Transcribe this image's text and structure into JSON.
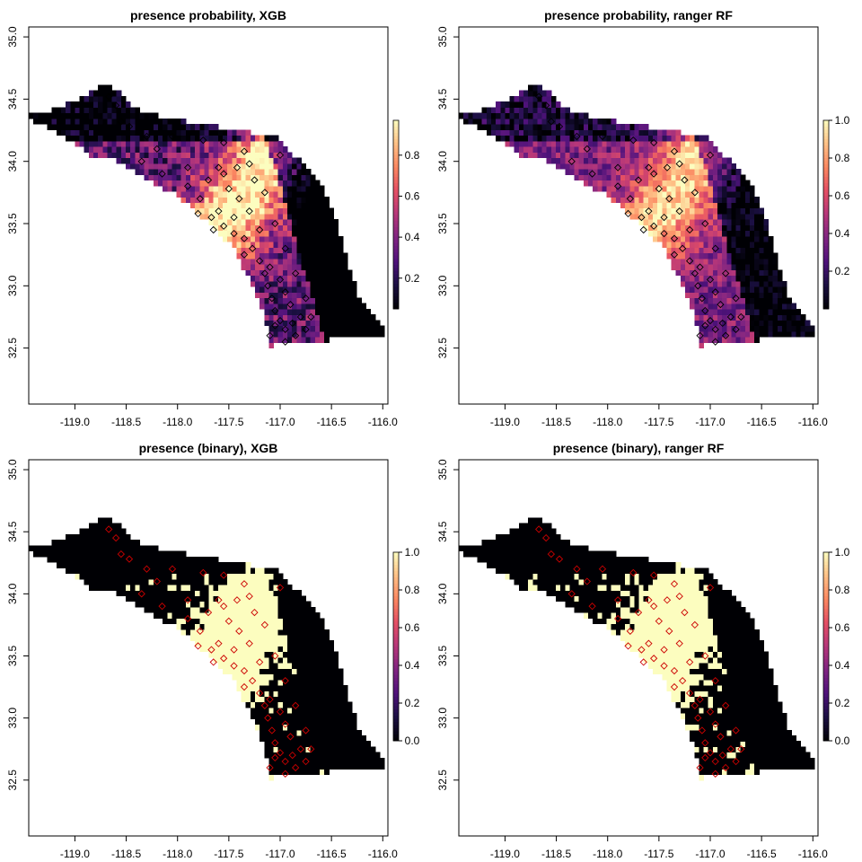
{
  "chart_data": [
    {
      "type": "heatmap",
      "title": "presence probability, XGB",
      "xlim": [
        -119.45,
        -115.95
      ],
      "ylim": [
        32.05,
        35.08
      ],
      "x_ticks": [
        -119.0,
        -118.5,
        -118.0,
        -117.5,
        -117.0,
        -116.5,
        -116.0
      ],
      "x_tick_labels": [
        "-119.0",
        "-118.5",
        "-118.0",
        "-117.5",
        "-117.0",
        "-116.5",
        "-116.0"
      ],
      "y_ticks": [
        32.5,
        33.0,
        33.5,
        34.0,
        34.5,
        35.0
      ],
      "y_tick_labels": [
        "32.5",
        "33.0",
        "33.5",
        "34.0",
        "34.5",
        "35.0"
      ],
      "legend": {
        "range": [
          0.05,
          0.97
        ],
        "ticks": [
          0.2,
          0.4,
          0.6,
          0.8
        ],
        "tick_labels": [
          "0.2",
          "0.4",
          "0.6",
          "0.8"
        ],
        "colormap": "magma"
      },
      "binary": false,
      "points": {
        "marker": "open-diamond",
        "color": "#000000"
      }
    },
    {
      "type": "heatmap",
      "title": "presence probability, ranger RF",
      "xlim": [
        -119.45,
        -115.95
      ],
      "ylim": [
        32.05,
        35.08
      ],
      "x_ticks": [
        -119.0,
        -118.5,
        -118.0,
        -117.5,
        -117.0,
        -116.5,
        -116.0
      ],
      "x_tick_labels": [
        "-119.0",
        "-118.5",
        "-118.0",
        "-117.5",
        "-117.0",
        "-116.5",
        "-116.0"
      ],
      "y_ticks": [
        32.5,
        33.0,
        33.5,
        34.0,
        34.5,
        35.0
      ],
      "y_tick_labels": [
        "32.5",
        "33.0",
        "33.5",
        "34.0",
        "34.5",
        "35.0"
      ],
      "legend": {
        "range": [
          0.0,
          1.0
        ],
        "ticks": [
          0.2,
          0.4,
          0.6,
          0.8,
          1.0
        ],
        "tick_labels": [
          "0.2",
          "0.4",
          "0.6",
          "0.8",
          "1.0"
        ],
        "colormap": "magma"
      },
      "binary": false,
      "points": {
        "marker": "open-diamond",
        "color": "#000000"
      }
    },
    {
      "type": "heatmap",
      "title": "presence (binary), XGB",
      "xlim": [
        -119.45,
        -115.95
      ],
      "ylim": [
        32.05,
        35.08
      ],
      "x_ticks": [
        -119.0,
        -118.5,
        -118.0,
        -117.5,
        -117.0,
        -116.5,
        -116.0
      ],
      "x_tick_labels": [
        "-119.0",
        "-118.5",
        "-118.0",
        "-117.5",
        "-117.0",
        "-116.5",
        "-116.0"
      ],
      "y_ticks": [
        32.5,
        33.0,
        33.5,
        34.0,
        34.5,
        35.0
      ],
      "y_tick_labels": [
        "32.5",
        "33.0",
        "33.5",
        "34.0",
        "34.5",
        "35.0"
      ],
      "legend": {
        "range": [
          0.0,
          1.0
        ],
        "ticks": [
          0.0,
          0.2,
          0.4,
          0.6,
          0.8,
          1.0
        ],
        "tick_labels": [
          "0.0",
          "0.2",
          "0.4",
          "0.6",
          "0.8",
          "1.0"
        ],
        "colormap": "magma"
      },
      "binary": true,
      "points": {
        "marker": "open-diamond",
        "color": "#cc0000"
      }
    },
    {
      "type": "heatmap",
      "title": "presence (binary), ranger RF",
      "xlim": [
        -119.45,
        -115.95
      ],
      "ylim": [
        32.05,
        35.08
      ],
      "x_ticks": [
        -119.0,
        -118.5,
        -118.0,
        -117.5,
        -117.0,
        -116.5,
        -116.0
      ],
      "x_tick_labels": [
        "-119.0",
        "-118.5",
        "-118.0",
        "-117.5",
        "-117.0",
        "-116.5",
        "-116.0"
      ],
      "y_ticks": [
        32.5,
        33.0,
        33.5,
        34.0,
        34.5,
        35.0
      ],
      "y_tick_labels": [
        "32.5",
        "33.0",
        "33.5",
        "34.0",
        "34.5",
        "35.0"
      ],
      "legend": {
        "range": [
          0.0,
          1.0
        ],
        "ticks": [
          0.0,
          0.2,
          0.4,
          0.6,
          0.8,
          1.0
        ],
        "tick_labels": [
          "0.0",
          "0.2",
          "0.4",
          "0.6",
          "0.8",
          "1.0"
        ],
        "colormap": "magma"
      },
      "binary": true,
      "points": {
        "marker": "open-diamond",
        "color": "#cc0000"
      }
    }
  ],
  "region_outline": [
    [
      -119.45,
      34.38
    ],
    [
      -119.2,
      34.42
    ],
    [
      -118.95,
      34.5
    ],
    [
      -118.7,
      34.62
    ],
    [
      -118.55,
      34.55
    ],
    [
      -118.4,
      34.42
    ],
    [
      -118.1,
      34.35
    ],
    [
      -117.8,
      34.3
    ],
    [
      -117.4,
      34.25
    ],
    [
      -117.05,
      34.2
    ],
    [
      -116.8,
      34.0
    ],
    [
      -116.6,
      33.8
    ],
    [
      -116.45,
      33.5
    ],
    [
      -116.35,
      33.2
    ],
    [
      -116.25,
      32.95
    ],
    [
      -116.1,
      32.75
    ],
    [
      -115.95,
      32.6
    ],
    [
      -116.35,
      32.58
    ],
    [
      -116.75,
      32.55
    ],
    [
      -117.1,
      32.52
    ],
    [
      -117.15,
      32.75
    ],
    [
      -117.3,
      33.05
    ],
    [
      -117.45,
      33.3
    ],
    [
      -117.7,
      33.5
    ],
    [
      -117.9,
      33.65
    ],
    [
      -118.05,
      33.75
    ],
    [
      -118.3,
      33.85
    ],
    [
      -118.55,
      34.0
    ],
    [
      -118.85,
      34.05
    ],
    [
      -119.1,
      34.2
    ],
    [
      -119.45,
      34.35
    ]
  ],
  "presence_points": [
    [
      -118.67,
      34.52
    ],
    [
      -118.6,
      34.45
    ],
    [
      -118.55,
      34.32
    ],
    [
      -118.47,
      34.28
    ],
    [
      -118.3,
      34.2
    ],
    [
      -118.05,
      34.2
    ],
    [
      -117.75,
      34.17
    ],
    [
      -117.55,
      34.15
    ],
    [
      -117.35,
      34.08
    ],
    [
      -117.3,
      33.98
    ],
    [
      -117.55,
      33.9
    ],
    [
      -117.7,
      33.85
    ],
    [
      -117.78,
      33.7
    ],
    [
      -117.8,
      33.58
    ],
    [
      -117.67,
      33.55
    ],
    [
      -117.55,
      33.48
    ],
    [
      -117.45,
      33.42
    ],
    [
      -117.35,
      33.38
    ],
    [
      -117.27,
      33.3
    ],
    [
      -117.2,
      33.2
    ],
    [
      -117.15,
      33.1
    ],
    [
      -117.12,
      33.0
    ],
    [
      -117.08,
      32.9
    ],
    [
      -117.05,
      32.8
    ],
    [
      -117.0,
      32.72
    ],
    [
      -116.95,
      32.65
    ],
    [
      -116.85,
      32.6
    ],
    [
      -116.75,
      32.65
    ],
    [
      -116.8,
      32.75
    ],
    [
      -116.9,
      32.85
    ],
    [
      -116.95,
      32.95
    ],
    [
      -117.0,
      33.05
    ],
    [
      -117.1,
      33.15
    ],
    [
      -117.2,
      33.45
    ],
    [
      -117.3,
      33.6
    ],
    [
      -117.4,
      33.7
    ],
    [
      -117.5,
      33.78
    ],
    [
      -117.6,
      33.6
    ],
    [
      -117.9,
      33.8
    ],
    [
      -118.15,
      33.9
    ],
    [
      -118.35,
      34.0
    ],
    [
      -117.25,
      33.85
    ],
    [
      -117.15,
      33.75
    ],
    [
      -117.05,
      33.5
    ],
    [
      -116.95,
      33.3
    ],
    [
      -116.85,
      33.1
    ],
    [
      -116.75,
      32.9
    ],
    [
      -116.7,
      32.75
    ],
    [
      -117.1,
      32.6
    ],
    [
      -116.95,
      32.55
    ],
    [
      -117.65,
      33.45
    ],
    [
      -117.45,
      33.55
    ],
    [
      -117.35,
      33.25
    ],
    [
      -117.05,
      32.68
    ],
    [
      -116.88,
      32.7
    ],
    [
      -117.6,
      33.95
    ],
    [
      -117.9,
      33.95
    ],
    [
      -118.2,
      34.1
    ],
    [
      -117.42,
      33.95
    ],
    [
      -117.0,
      34.05
    ]
  ]
}
